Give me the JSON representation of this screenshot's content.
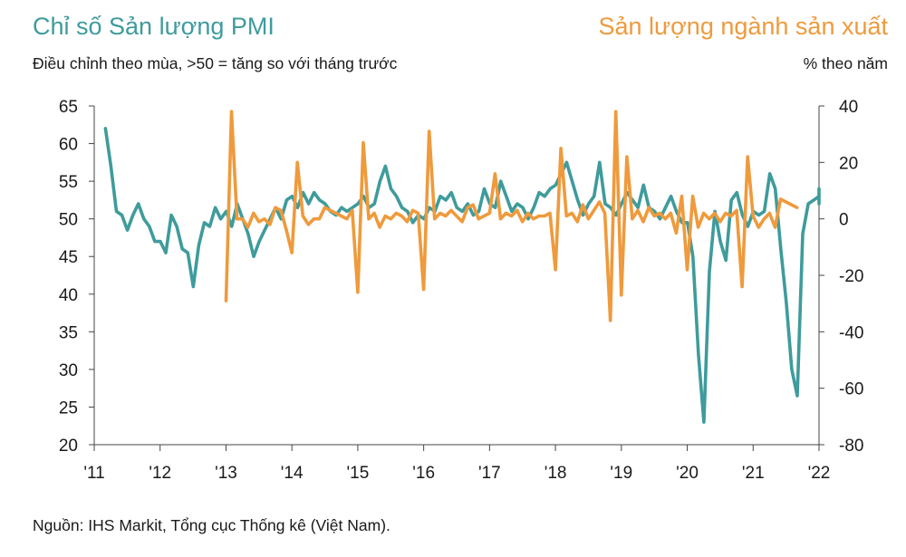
{
  "chart_data": {
    "type": "line",
    "title_left": "Chỉ số Sản lượng PMI",
    "title_right": "Sản lượng ngành sản xuất",
    "subtitle_left": "Điều chỉnh theo mùa, >50 = tăng so với tháng trước",
    "subtitle_right": "% theo năm",
    "source": "Nguồn: IHS Markit, Tổng cục Thống kê (Việt Nam).",
    "x_ticks": [
      "'11",
      "'12",
      "'13",
      "'14",
      "'15",
      "'16",
      "'17",
      "'18",
      "'19",
      "'20",
      "'21",
      "'22"
    ],
    "x_range": [
      2011,
      2022
    ],
    "y_left": {
      "range": [
        20,
        65
      ],
      "ticks": [
        20,
        25,
        30,
        35,
        40,
        45,
        50,
        55,
        60,
        65
      ]
    },
    "y_right": {
      "range": [
        -80,
        40
      ],
      "ticks": [
        -80,
        -60,
        -40,
        -20,
        0,
        20,
        40
      ]
    },
    "colors": {
      "pmi": "#3f9b9c",
      "production": "#ef9a3c"
    },
    "series": [
      {
        "key": "pmi",
        "axis": "left",
        "x_start": 2011.17,
        "x_step": 0.08333,
        "values": [
          62.0,
          57.0,
          51.0,
          50.5,
          48.5,
          50.5,
          52.0,
          50.0,
          49.0,
          47.0,
          47.0,
          45.5,
          50.5,
          49.0,
          46.0,
          45.5,
          41.0,
          46.5,
          49.5,
          49.0,
          51.5,
          50.0,
          51.0,
          49.0,
          52.0,
          50.0,
          48.0,
          45.0,
          47.0,
          48.5,
          50.0,
          51.5,
          50.0,
          52.5,
          53.0,
          51.5,
          53.5,
          52.0,
          53.5,
          52.5,
          52.0,
          51.0,
          50.5,
          51.5,
          51.0,
          51.5,
          52.0,
          53.0,
          51.5,
          52.0,
          55.0,
          57.0,
          54.0,
          53.0,
          51.5,
          51.0,
          49.5,
          50.5,
          50.0,
          51.5,
          51.0,
          53.0,
          52.5,
          53.5,
          51.5,
          51.0,
          52.0,
          50.5,
          51.0,
          54.0,
          52.0,
          51.5,
          55.0,
          53.0,
          51.0,
          52.0,
          51.5,
          50.0,
          51.5,
          53.5,
          53.0,
          54.0,
          54.5,
          56.0,
          57.5,
          55.0,
          52.5,
          50.5,
          52.0,
          53.0,
          57.5,
          52.0,
          51.5,
          50.5,
          52.0,
          53.5,
          52.5,
          51.5,
          54.5,
          51.5,
          51.0,
          50.0,
          51.5,
          53.0,
          51.0,
          49.5,
          49.5,
          45.0,
          32.0,
          23.0,
          43.0,
          51.0,
          47.0,
          44.5,
          52.5,
          53.5,
          50.5,
          49.0,
          51.0,
          50.5,
          51.0,
          56.0,
          54.0,
          46.0,
          39.0,
          30.0,
          26.5,
          48.0,
          52.0,
          52.5,
          53.0,
          52.0,
          54.0
        ]
      },
      {
        "key": "production",
        "axis": "right",
        "x_start": 2013.0,
        "x_step": 0.08333,
        "values": [
          -29,
          38,
          0,
          0,
          -3,
          2,
          -1,
          0,
          -2,
          4,
          3,
          -4,
          -12,
          20,
          1,
          -2,
          0,
          0,
          4,
          3,
          2,
          1,
          0,
          3,
          -26,
          27,
          0,
          2,
          -3,
          1,
          0,
          2,
          1,
          -1,
          3,
          2,
          -25,
          31,
          0,
          2,
          1,
          3,
          1,
          -1,
          4,
          5,
          0,
          1,
          2,
          16,
          0,
          2,
          1,
          3,
          -1,
          2,
          0,
          1,
          1,
          2,
          -18,
          25,
          1,
          2,
          -1,
          5,
          0,
          3,
          6,
          2,
          -36,
          38,
          -27,
          22,
          0,
          3,
          -1,
          4,
          1,
          2,
          0,
          2,
          -5,
          8,
          -18,
          8,
          -3,
          2,
          0,
          2,
          -1,
          2,
          1,
          3,
          -24,
          22,
          1,
          -3,
          0,
          2,
          -3,
          7,
          6,
          5,
          4
        ]
      }
    ]
  }
}
